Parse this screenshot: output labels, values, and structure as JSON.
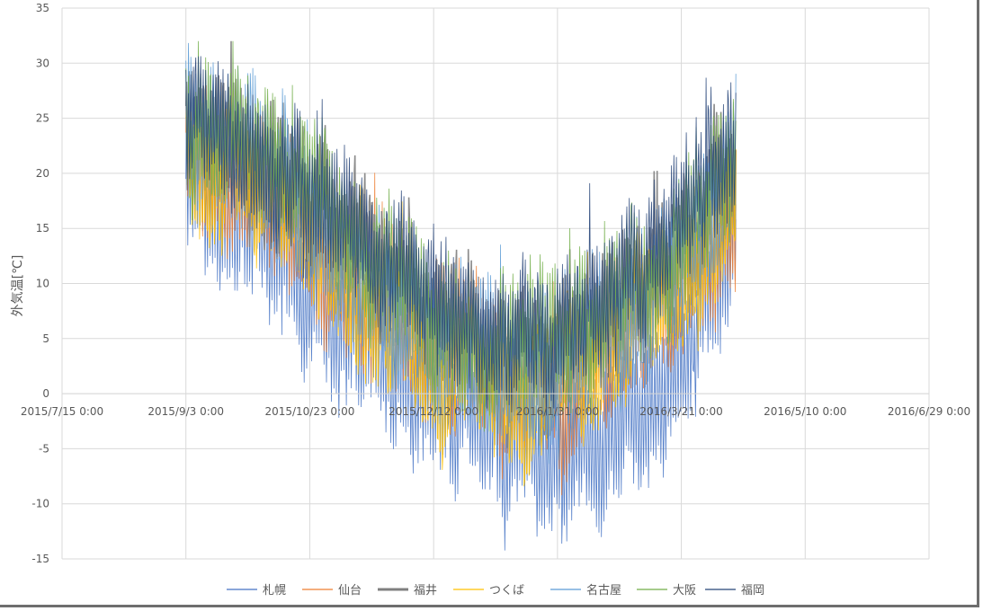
{
  "chart_data": {
    "type": "line",
    "title": "",
    "xlabel": "",
    "ylabel": "外気温[℃]",
    "ylim": [
      -15,
      35
    ],
    "yticks": [
      35,
      30,
      25,
      20,
      15,
      10,
      5,
      0,
      -5,
      -10,
      -15
    ],
    "ytick_labels": [
      "35",
      "30",
      "25",
      "20",
      "15",
      "10",
      "5",
      "0",
      "-5",
      "-10",
      "-15"
    ],
    "x_axis_at_y": 0,
    "xlim_days": [
      0,
      350
    ],
    "xticks_days": [
      0,
      50,
      100,
      150,
      200,
      250,
      300,
      350
    ],
    "xtick_labels": [
      "2015/7/15 0:00",
      "2015/9/3 0:00",
      "2015/10/23 0:00",
      "2015/12/12 0:00",
      "2016/1/31 0:00",
      "2016/3/21 0:00",
      "2016/5/10 0:00",
      "2016/6/29 0:00"
    ],
    "data_start_day": 50,
    "data_end_day": 272,
    "gridlines": true,
    "legend_position": "bottom",
    "series": [
      {
        "name": "札幌",
        "color": "#4472C4",
        "width": 0.8,
        "trend_days": [
          50,
          75,
          100,
          125,
          150,
          175,
          200,
          225,
          250,
          272
        ],
        "trend_values": [
          19,
          16,
          10,
          4,
          1,
          -4,
          -5,
          -3,
          3,
          15
        ],
        "daily_swing": 11
      },
      {
        "name": "仙台",
        "color": "#ED7D31",
        "width": 0.8,
        "trend_days": [
          50,
          75,
          100,
          125,
          150,
          175,
          200,
          225,
          250,
          272
        ],
        "trend_values": [
          22,
          19,
          14,
          8,
          3,
          1,
          1,
          4,
          9,
          17
        ],
        "daily_swing": 10
      },
      {
        "name": "福井",
        "color": "#7F7F7F",
        "width": 1.6,
        "trend_days": [
          50,
          75,
          100,
          125,
          150,
          175,
          200,
          225,
          250,
          272
        ],
        "trend_values": [
          24,
          22,
          17,
          12,
          7,
          3,
          3,
          8,
          13,
          20
        ],
        "daily_swing": 10
      },
      {
        "name": "つくば",
        "color": "#FFC000",
        "width": 0.8,
        "trend_days": [
          50,
          75,
          100,
          125,
          150,
          175,
          200,
          225,
          250,
          272
        ],
        "trend_values": [
          22,
          20,
          14,
          8,
          3,
          0,
          1,
          5,
          11,
          18
        ],
        "daily_swing": 11
      },
      {
        "name": "名古屋",
        "color": "#5B9BD5",
        "width": 0.8,
        "trend_days": [
          50,
          75,
          100,
          125,
          150,
          175,
          200,
          225,
          250,
          272
        ],
        "trend_values": [
          24,
          22,
          16,
          11,
          6,
          2,
          3,
          7,
          13,
          20
        ],
        "daily_swing": 11
      },
      {
        "name": "大阪",
        "color": "#70AD47",
        "width": 0.8,
        "trend_days": [
          50,
          75,
          100,
          125,
          150,
          175,
          200,
          225,
          250,
          272
        ],
        "trend_values": [
          25,
          23,
          18,
          13,
          8,
          5,
          5,
          9,
          14,
          21
        ],
        "daily_swing": 9
      },
      {
        "name": "福岡",
        "color": "#264478",
        "width": 0.8,
        "trend_days": [
          50,
          75,
          100,
          125,
          150,
          175,
          200,
          225,
          250,
          272
        ],
        "trend_values": [
          25,
          23,
          18,
          13,
          9,
          5,
          6,
          10,
          15,
          21
        ],
        "daily_swing": 9
      }
    ]
  }
}
